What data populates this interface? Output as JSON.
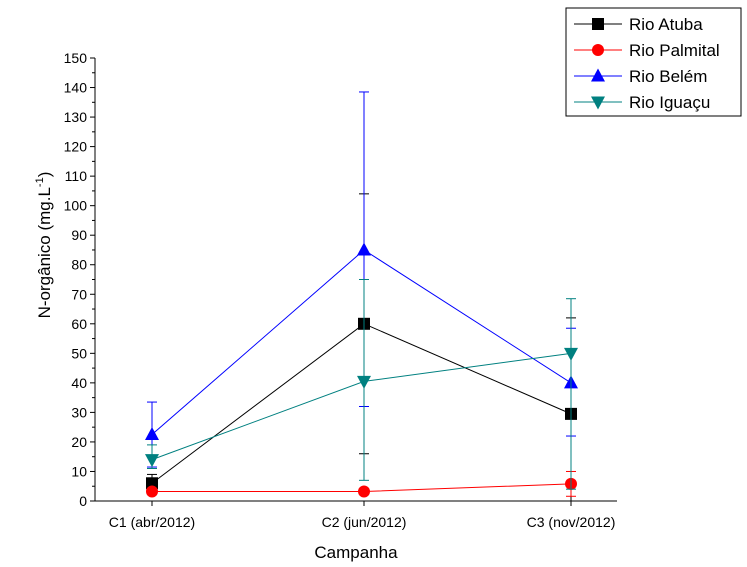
{
  "chart_data": {
    "type": "line",
    "xlabel": "Campanha",
    "ylabel_main": "N-orgânico (mg.L",
    "ylabel_sup": "-1",
    "ylabel_end": ")",
    "categories": [
      "C1 (abr/2012)",
      "C2 (jun/2012)",
      "C3 (nov/2012)"
    ],
    "ylim": [
      0,
      150
    ],
    "yticks": [
      0,
      10,
      20,
      30,
      40,
      50,
      60,
      70,
      80,
      90,
      100,
      110,
      120,
      130,
      140,
      150
    ],
    "legend_position": "top-right",
    "series": [
      {
        "name": "Rio Atuba",
        "color": "#000000",
        "marker": "square",
        "values": [
          6,
          60,
          29.5
        ],
        "err_high": [
          9,
          104,
          62
        ],
        "err_low": [
          3,
          16,
          0
        ]
      },
      {
        "name": "Rio Palmital",
        "color": "#ff0000",
        "marker": "circle",
        "values": [
          3.2,
          3.2,
          5.8
        ],
        "err_high": [
          3.4,
          3.4,
          10
        ],
        "err_low": [
          3,
          3,
          1.6
        ]
      },
      {
        "name": "Rio Belém",
        "color": "#0000ff",
        "marker": "triangle-up",
        "values": [
          22.5,
          85,
          40
        ],
        "err_high": [
          33.5,
          138.5,
          58.5
        ],
        "err_low": [
          11.5,
          32,
          22
        ]
      },
      {
        "name": "Rio Iguaçu",
        "color": "#008080",
        "marker": "triangle-down",
        "values": [
          14,
          40.5,
          50
        ],
        "err_high": [
          19,
          75,
          68.5
        ],
        "err_low": [
          11,
          7,
          4
        ]
      }
    ]
  }
}
